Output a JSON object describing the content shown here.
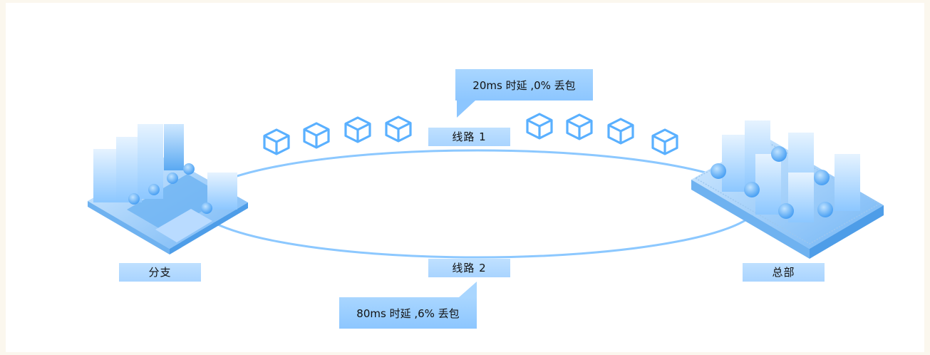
{
  "nodes": {
    "branch": {
      "label": "分支"
    },
    "hq": {
      "label": "总部"
    }
  },
  "links": {
    "line1": {
      "label": "线路 1",
      "stats": "20ms 时延 ,0% 丢包"
    },
    "line2": {
      "label": "线路 2",
      "stats": "80ms 时延 ,6% 丢包"
    }
  },
  "packets": {
    "count": 8,
    "icon": "cube-icon"
  },
  "colors": {
    "background": "#fbf7ee",
    "accent": "#5ab0ff",
    "label_fill": "#b4dbff",
    "callout_fill": "#95caff",
    "ring": "#8cc8ff"
  }
}
